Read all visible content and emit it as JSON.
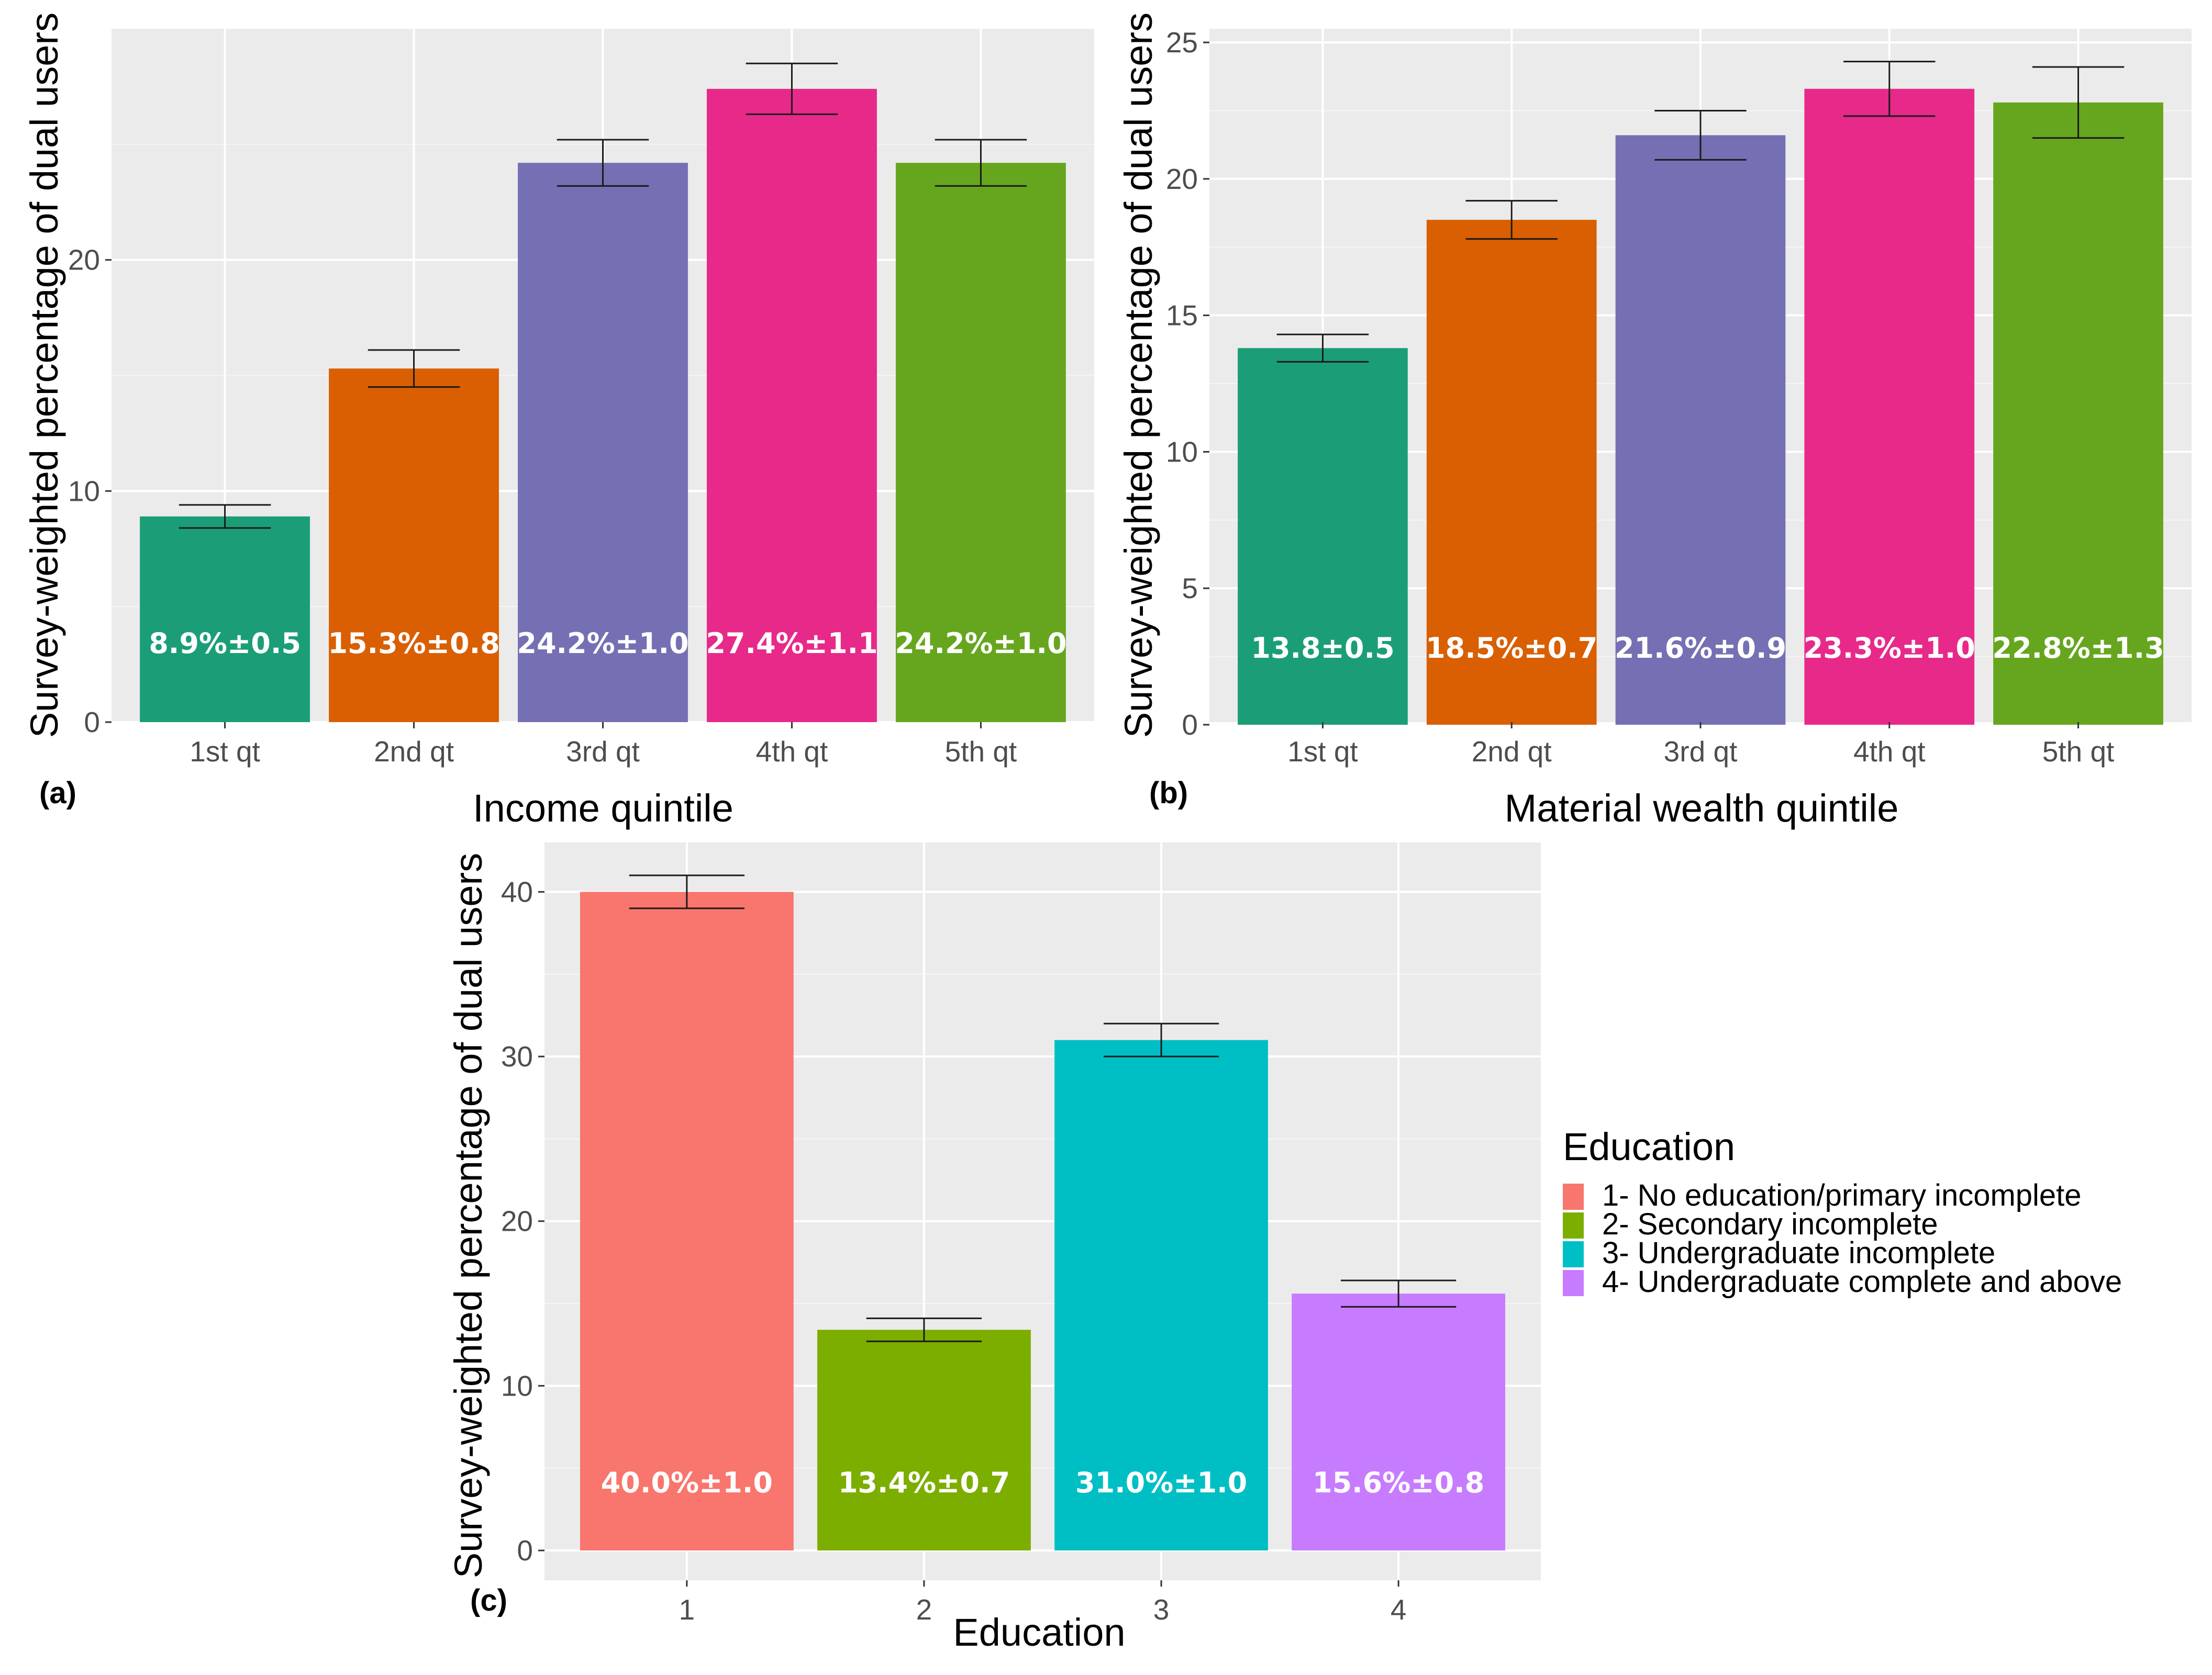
{
  "chart_data": [
    {
      "type": "bar",
      "panel_tag": "(a)",
      "title": "",
      "xlabel": "Income quintile",
      "ylabel": "Survey-weighted percentage of dual users",
      "ylim": [
        0,
        30
      ],
      "yticks": [
        0,
        10,
        20
      ],
      "categories": [
        "1st qt",
        "2nd qt",
        "3rd qt",
        "4th qt",
        "5th qt"
      ],
      "values": [
        8.9,
        15.3,
        24.2,
        27.4,
        24.2
      ],
      "errors": [
        0.5,
        0.8,
        1.0,
        1.1,
        1.0
      ],
      "labels": [
        "8.9%±0.5",
        "15.3%±0.8",
        "24.2%±1.0",
        "27.4%±1.1",
        "24.2%±1.0"
      ],
      "label_value": 3.4,
      "colors": [
        "#1b9e77",
        "#d95f02",
        "#7570b3",
        "#e7298a",
        "#66a61e"
      ],
      "grid": true
    },
    {
      "type": "bar",
      "panel_tag": "(b)",
      "title": "",
      "xlabel": "Material wealth quintile",
      "ylabel": "Survey-weighted percentage of dual users",
      "ylim": [
        0,
        25.5
      ],
      "yticks": [
        0,
        5,
        10,
        15,
        20,
        25
      ],
      "categories": [
        "1st qt",
        "2nd qt",
        "3rd qt",
        "4th qt",
        "5th qt"
      ],
      "values": [
        13.8,
        18.5,
        21.6,
        23.3,
        22.8
      ],
      "errors": [
        0.5,
        0.7,
        0.9,
        1.0,
        1.3
      ],
      "labels": [
        "13.8±0.5",
        "18.5%±0.7",
        "21.6%±0.9",
        "23.3%±1.0",
        "22.8%±1.3"
      ],
      "label_value": 2.8,
      "colors": [
        "#1b9e77",
        "#d95f02",
        "#7570b3",
        "#e7298a",
        "#66a61e"
      ],
      "grid": true
    },
    {
      "type": "bar",
      "panel_tag": "(c)",
      "title": "",
      "xlabel": "Education",
      "ylabel": "Survey-weighted percentage of dual users",
      "ylim": [
        0,
        43
      ],
      "yticks": [
        0,
        10,
        20,
        30,
        40
      ],
      "categories": [
        "1",
        "2",
        "3",
        "4"
      ],
      "values": [
        40.0,
        13.4,
        31.0,
        15.6
      ],
      "errors": [
        1.0,
        0.7,
        1.0,
        0.8
      ],
      "labels": [
        "40.0%±1.0",
        "13.4%±0.7",
        "31.0%±1.0",
        "15.6%±0.8"
      ],
      "label_value": 4.1,
      "colors": [
        "#f8766d",
        "#7cae00",
        "#00bfc4",
        "#c77cff"
      ],
      "grid": true,
      "legend": {
        "title": "Education",
        "position": "right",
        "entries": [
          "1- No education/primary incomplete",
          "2- Secondary incomplete",
          "3- Undergraduate incomplete",
          "4- Undergraduate complete and above"
        ]
      }
    }
  ]
}
